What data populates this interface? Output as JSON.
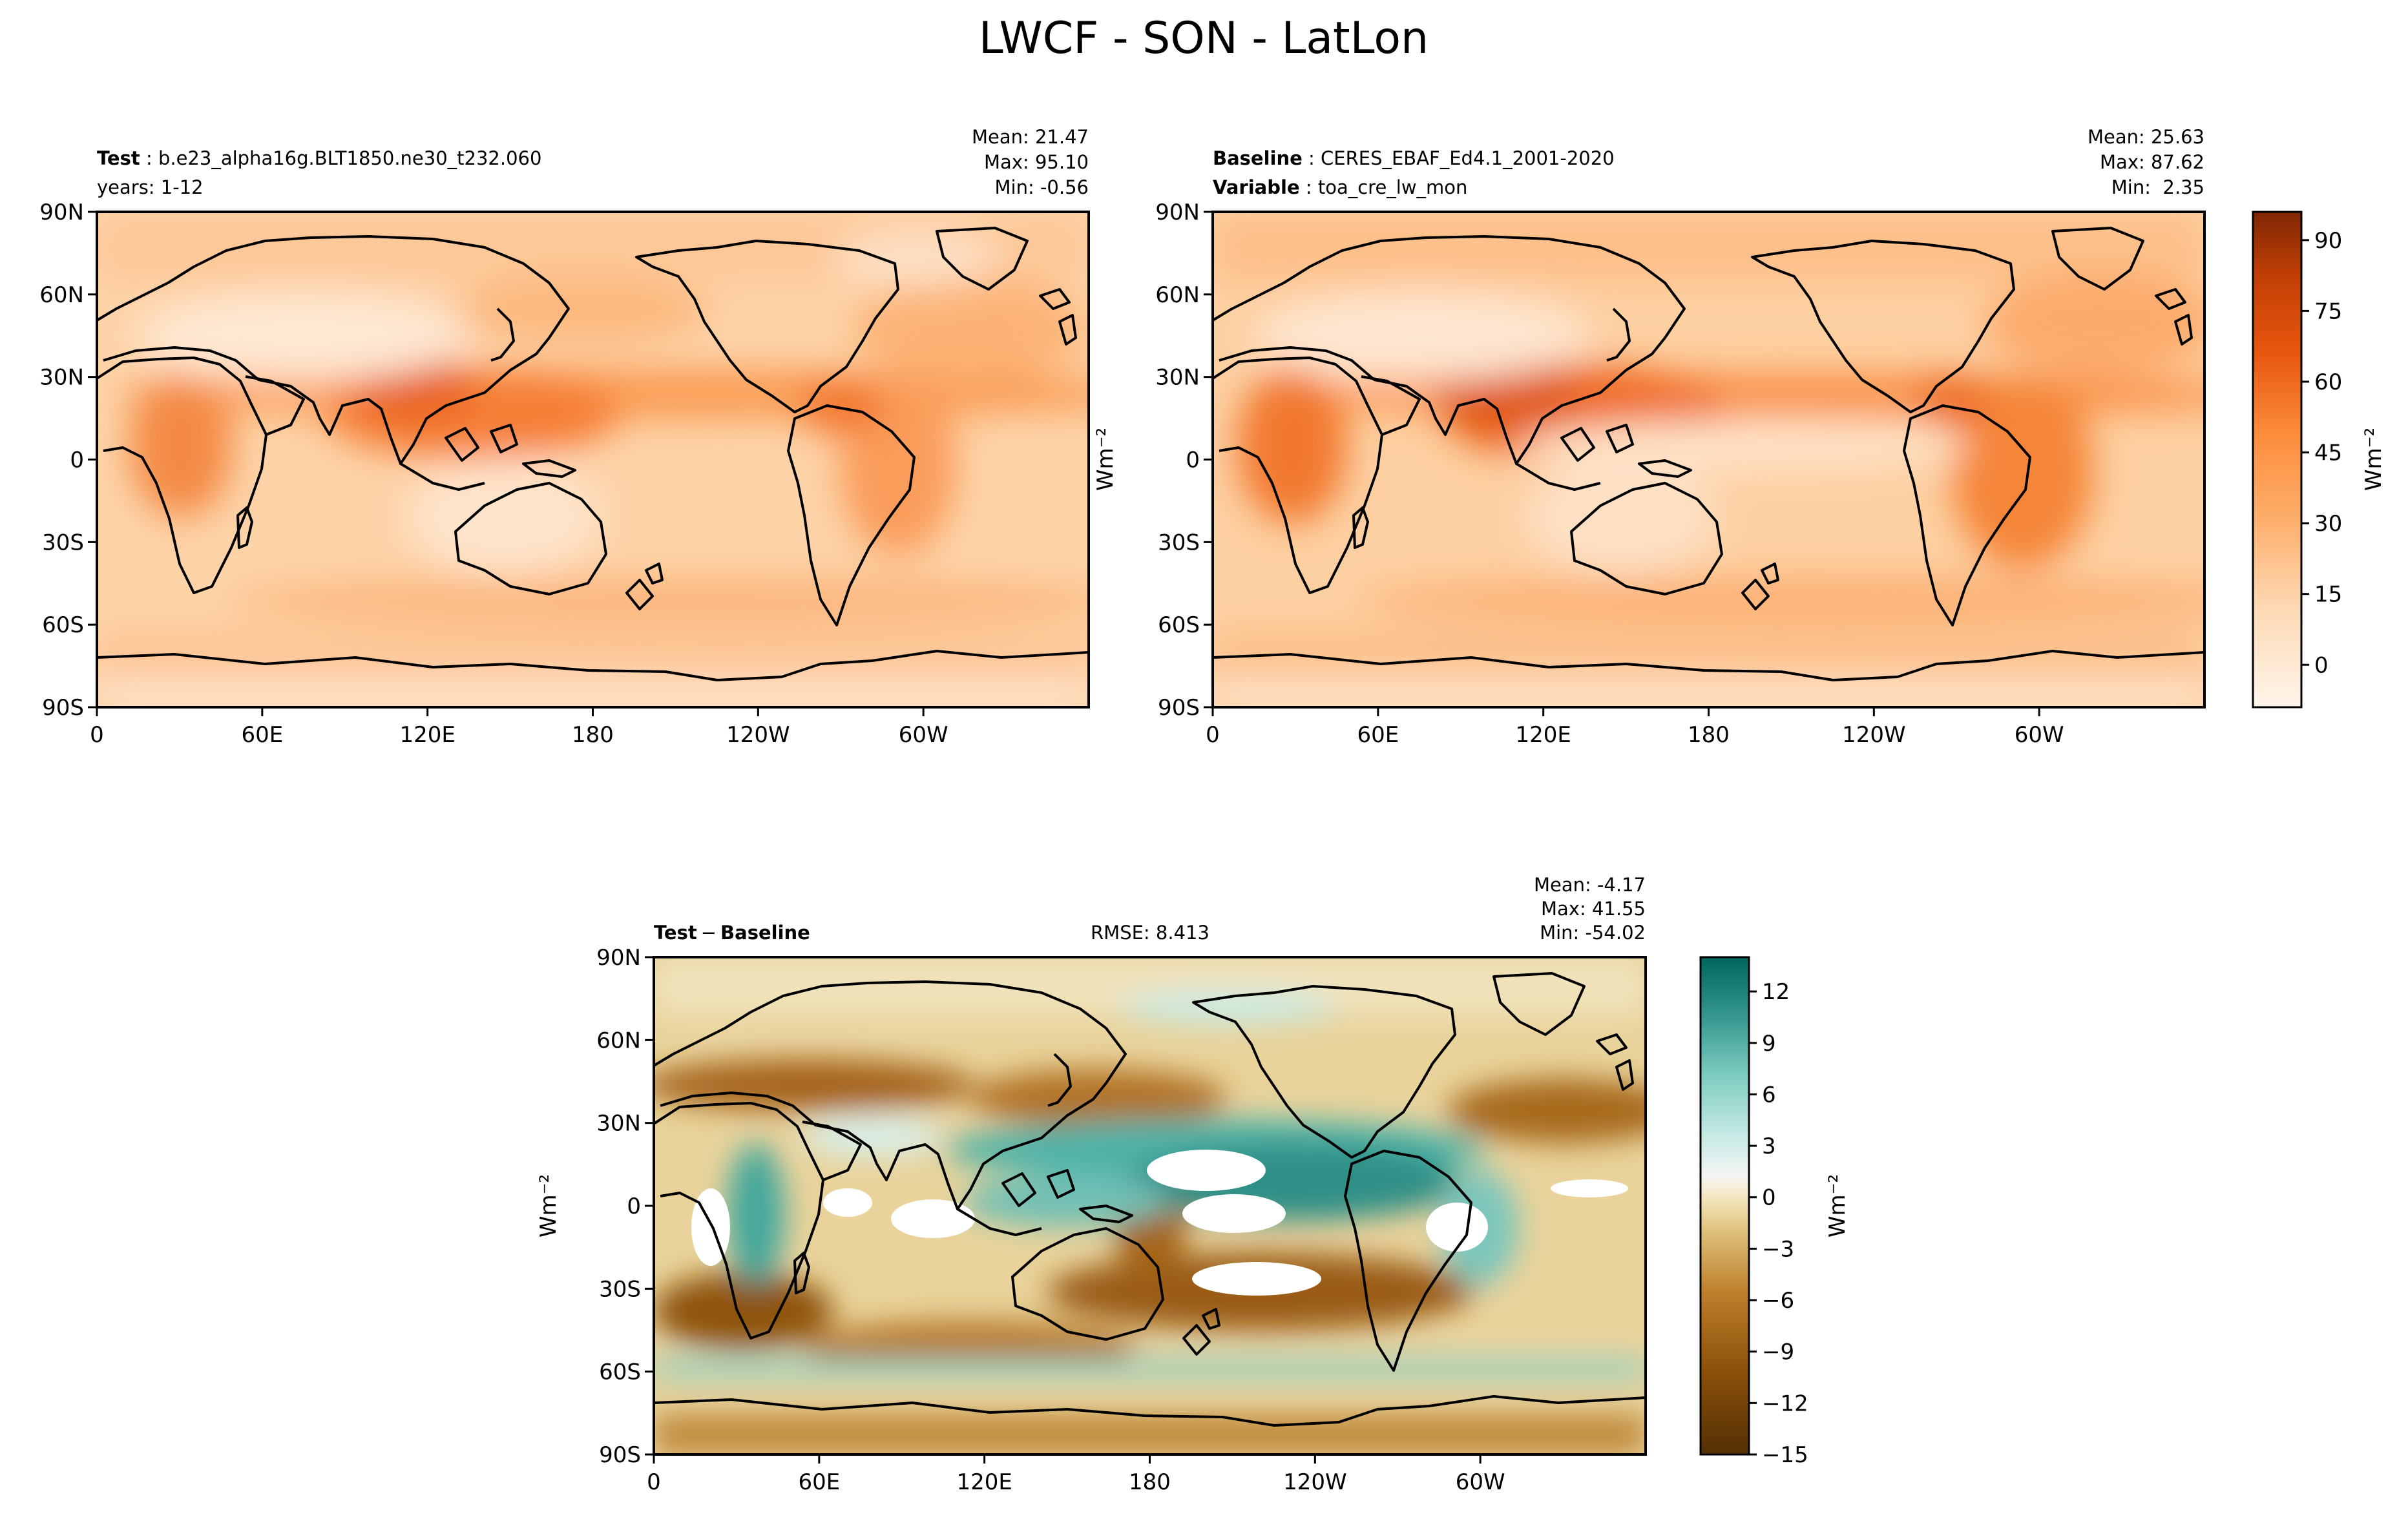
{
  "figure": {
    "title": "LWCF - SON - LatLon"
  },
  "chart_data": [
    {
      "id": "test",
      "type": "heatmap",
      "label_bold": "Test",
      "label_text": "b.e23_alpha16g.BLT1850.ne30_t232.060",
      "label_line2": "years: 1-12",
      "stats": [
        "Mean: 21.47",
        "Max: 95.10",
        "Min: -0.56"
      ],
      "stats_values": {
        "mean": 21.47,
        "max": 95.1,
        "min": -0.56
      },
      "x_ticks": [
        "0",
        "60E",
        "120E",
        "180",
        "120W",
        "60W"
      ],
      "x_tick_values": [
        0,
        60,
        120,
        180,
        240,
        300
      ],
      "xlim": [
        0,
        360
      ],
      "y_ticks": [
        "90N",
        "60N",
        "30N",
        "0",
        "30S",
        "60S",
        "90S"
      ],
      "y_tick_values": [
        90,
        60,
        30,
        0,
        -30,
        -60,
        -90
      ],
      "ylim": [
        -90,
        90
      ],
      "colormap": "Oranges"
    },
    {
      "id": "baseline",
      "type": "heatmap",
      "label_bold": "Baseline",
      "label_text": "CERES_EBAF_Ed4.1_2001-2020",
      "label_bold2": "Variable",
      "label_text2": "toa_cre_lw_mon",
      "stats": [
        "Mean: 25.63",
        "Max: 87.62",
        "Min:  2.35"
      ],
      "stats_values": {
        "mean": 25.63,
        "max": 87.62,
        "min": 2.35
      },
      "x_ticks": [
        "0",
        "60E",
        "120E",
        "180",
        "120W",
        "60W"
      ],
      "x_tick_values": [
        0,
        60,
        120,
        180,
        240,
        300
      ],
      "xlim": [
        0,
        360
      ],
      "y_ticks": [
        "90N",
        "60N",
        "30N",
        "0",
        "30S",
        "60S",
        "90S"
      ],
      "y_tick_values": [
        90,
        60,
        30,
        0,
        -30,
        -60,
        -90
      ],
      "ylim": [
        -90,
        90
      ],
      "ylabel": "Wm⁻²",
      "colormap": "Oranges",
      "colorbar": {
        "ticks": [
          "90",
          "75",
          "60",
          "45",
          "30",
          "15",
          "0"
        ],
        "tick_values": [
          90,
          75,
          60,
          45,
          30,
          15,
          0
        ],
        "range": [
          -9,
          96
        ],
        "label": "Wm⁻²"
      }
    },
    {
      "id": "diff",
      "type": "heatmap",
      "label_bold_a": "Test",
      "label_sep": "−",
      "label_bold_b": "Baseline",
      "rmse": "RMSE: 8.413",
      "stats": [
        "Mean: -4.17",
        "Max: 41.55",
        "Min: -54.02"
      ],
      "stats_values": {
        "mean": -4.17,
        "max": 41.55,
        "min": -54.02,
        "rmse": 8.413
      },
      "x_ticks": [
        "0",
        "60E",
        "120E",
        "180",
        "120W",
        "60W"
      ],
      "x_tick_values": [
        0,
        60,
        120,
        180,
        240,
        300
      ],
      "xlim": [
        0,
        360
      ],
      "y_ticks": [
        "90N",
        "60N",
        "30N",
        "0",
        "30S",
        "60S",
        "90S"
      ],
      "y_tick_values": [
        90,
        60,
        30,
        0,
        -30,
        -60,
        -90
      ],
      "ylim": [
        -90,
        90
      ],
      "ylabel": "Wm⁻²",
      "colormap": "BrBG",
      "colorbar": {
        "ticks": [
          "12",
          "9",
          "6",
          "3",
          "0",
          "−3",
          "−6",
          "−9",
          "−12",
          "−15"
        ],
        "tick_values": [
          12,
          9,
          6,
          3,
          0,
          -3,
          -6,
          -9,
          -12,
          -15
        ],
        "range": [
          -15,
          14
        ],
        "label": "Wm⁻²"
      }
    }
  ]
}
